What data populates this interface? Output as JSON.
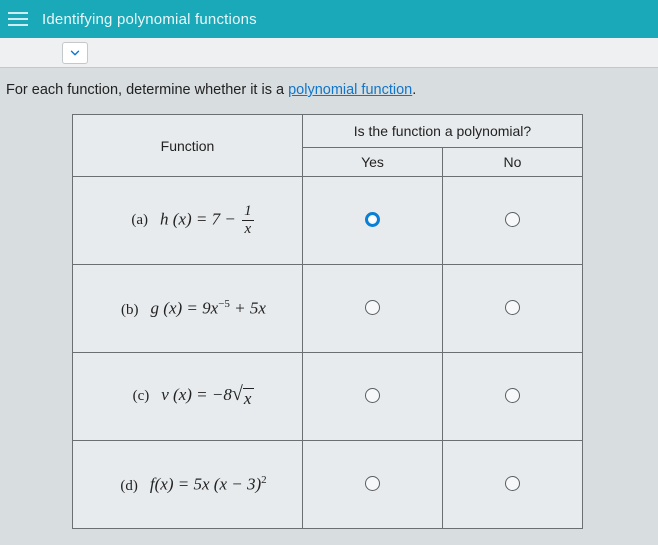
{
  "colors": {
    "topbar_bg": "#1aa9b8",
    "topbar_text": "#e8f7f9",
    "body_bg": "#d8dde0",
    "link": "#1176c9",
    "border": "#6b6f72",
    "radio_selected": "#0a7fd6"
  },
  "topbar": {
    "title": "Identifying polynomial functions"
  },
  "instruction": {
    "prefix": "For each function, determine whether it is a ",
    "link_text": "polynomial function",
    "suffix": "."
  },
  "table": {
    "header_function": "Function",
    "header_question": "Is the function a polynomial?",
    "header_yes": "Yes",
    "header_no": "No",
    "rows": [
      {
        "label": "(a)",
        "fn_html": "<i>h</i> (<i>x</i>) = 7 − <span class=\"frac\"><span class=\"n\">1</span><span class=\"bar\"></span><span class=\"d\"><i>x</i></span></span>",
        "yes_selected": true,
        "no_selected": false
      },
      {
        "label": "(b)",
        "fn_html": "<i>g</i> (<i>x</i>) = 9<i>x</i><sup>−5</sup> + 5<i>x</i>",
        "yes_selected": false,
        "no_selected": false
      },
      {
        "label": "(c)",
        "fn_html": "<i>v</i> (<i>x</i>) = −8<span class=\"sqrt\"><span class=\"rad\">√</span><span class=\"arg\"><i>x</i></span></span>",
        "yes_selected": false,
        "no_selected": false
      },
      {
        "label": "(d)",
        "fn_html": "<i>f</i>(<i>x</i>) = 5<i>x</i> (<i>x</i> − 3)<sup>2</sup>",
        "yes_selected": false,
        "no_selected": false
      }
    ]
  }
}
